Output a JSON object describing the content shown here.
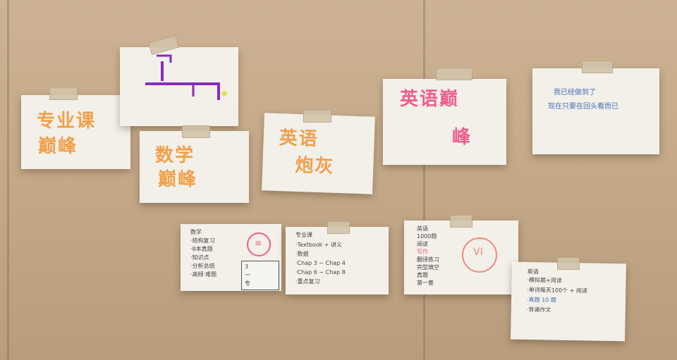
{
  "colors": {
    "wall": "#c6ab8a",
    "orange_marker": "#f0a04a",
    "pink_marker": "#ee5d8c",
    "purple_marker": "#8a2bbf",
    "blue_pen": "#4a6fb2"
  },
  "cards": {
    "zhuanye": {
      "line1": "专业课",
      "line2": "巅峰"
    },
    "diagram": {
      "icon": "diagram-drawing-icon"
    },
    "shuxue": {
      "line1": "数学",
      "line2": "巅峰"
    },
    "yingyu_paopao": {
      "line1": "英语",
      "line2": "炮灰"
    },
    "yingyu_dianfeng": {
      "line1": "英语巅",
      "line2": "峰"
    },
    "message": {
      "line1": "我已经做到了",
      "line2": "现在只要在回头看而已"
    },
    "shuxue_notes": {
      "title": "数学",
      "lines": [
        "·结构复习",
        "·8本真题",
        "·知识点",
        "·分析总结",
        "·高频·难题"
      ],
      "side": [
        "3",
        "一",
        "专"
      ],
      "mark": "≡"
    },
    "zhuanye_notes": {
      "title": "专业课",
      "lines": [
        "·Textbook + 讲义",
        "·数据",
        "·Chap 3 ~ Chap 4",
        "·Chap 6 ~ Chap 8",
        "·重点复习"
      ]
    },
    "yingyu_notes": {
      "title": "英语",
      "lines": [
        "1000题",
        "阅读",
        "写作",
        "翻译练习",
        "完型填空",
        "真题",
        "第一套"
      ],
      "mark": "VI"
    },
    "plan_notes": {
      "title": "英语",
      "lines": [
        "·模拟题+阅读",
        "·单词每天100个 + 阅读",
        "·真题 10 题",
        "·背诵作文"
      ]
    }
  }
}
